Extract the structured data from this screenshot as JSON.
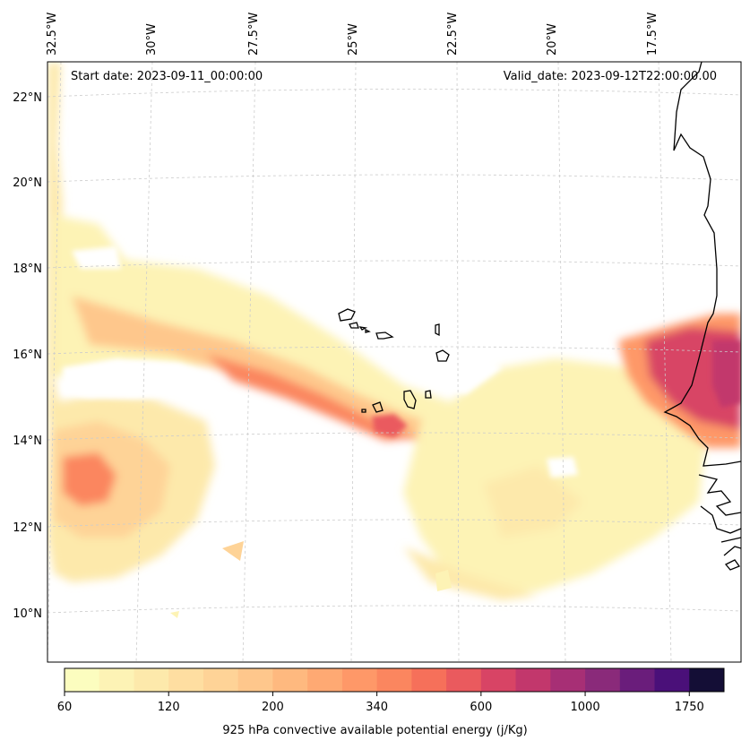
{
  "start_date": "Start date: 2023-09-11_00:00:00",
  "valid_date": "Valid_date: 2023-09-12T22:00:00.00",
  "lon_labels": [
    "32.5°W",
    "30°W",
    "27.5°W",
    "25°W",
    "22.5°W",
    "20°W",
    "17.5°W"
  ],
  "lat_labels": [
    "22°N",
    "20°N",
    "18°N",
    "16°N",
    "14°N",
    "12°N",
    "10°N"
  ],
  "colorbar": {
    "title": "925 hPa convective available potential energy (j/Kg)",
    "tick_labels": [
      "60",
      "120",
      "200",
      "340",
      "600",
      "1000",
      "1750"
    ],
    "colors": [
      "#fcfdbf",
      "#fdf3b5",
      "#fde9ab",
      "#fedea1",
      "#fed397",
      "#fec78c",
      "#feb97f",
      "#fea973",
      "#fe9868",
      "#fb865f",
      "#f6705a",
      "#ea5a5e",
      "#d84465",
      "#c2376c",
      "#a72f75",
      "#8a2a7a",
      "#6a1d7b",
      "#4a1079",
      "#140e36"
    ]
  }
}
